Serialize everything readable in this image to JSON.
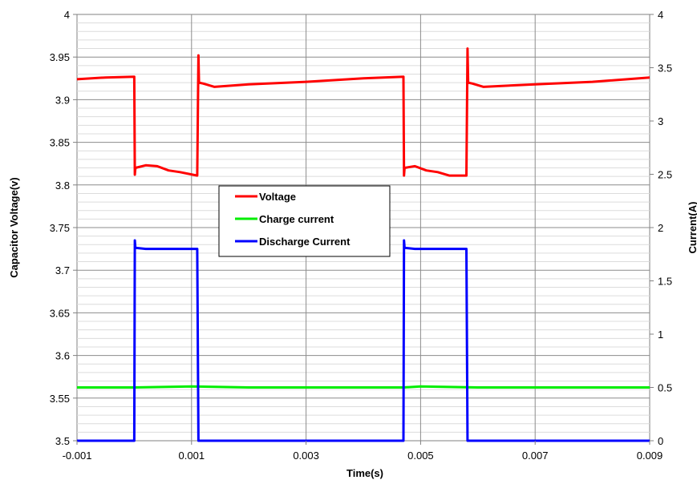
{
  "chart_data": {
    "type": "line",
    "title": "",
    "xlabel": "Time(s)",
    "ylabel": "Capacitor Voltage(v)",
    "y2label": "Current(A)",
    "xlim": [
      -0.001,
      0.009
    ],
    "ylim": [
      3.5,
      4.0
    ],
    "y2lim": [
      0,
      4
    ],
    "x_ticks": [
      -0.001,
      0.001,
      0.003,
      0.005,
      0.007,
      0.009
    ],
    "x_tick_labels": [
      "-0.001",
      "0.001",
      "0.003",
      "0.005",
      "0.007",
      "0.009"
    ],
    "y_ticks": [
      3.5,
      3.55,
      3.6,
      3.65,
      3.7,
      3.75,
      3.8,
      3.85,
      3.9,
      3.95,
      4.0
    ],
    "y_tick_labels": [
      "3.5",
      "3.55",
      "3.6",
      "3.65",
      "3.7",
      "3.75",
      "3.8",
      "3.85",
      "3.9",
      "3.95",
      "4"
    ],
    "y2_ticks": [
      0,
      0.5,
      1,
      1.5,
      2,
      2.5,
      3,
      3.5,
      4
    ],
    "y2_tick_labels": [
      "0",
      "0.5",
      "1",
      "1.5",
      "2",
      "2.5",
      "3",
      "3.5",
      "4"
    ],
    "grid": true,
    "legend_position": "center",
    "series": [
      {
        "name": "Voltage",
        "axis": "left",
        "color": "#ff0000",
        "x": [
          -0.001,
          -0.0005,
          0.0,
          1e-05,
          2e-05,
          0.0002,
          0.0004,
          0.0006,
          0.0008,
          0.0011,
          0.00112,
          0.00113,
          0.0012,
          0.0014,
          0.002,
          0.003,
          0.004,
          0.0047,
          0.00471,
          0.00472,
          0.0049,
          0.0051,
          0.0053,
          0.0055,
          0.0058,
          0.00582,
          0.00583,
          0.0059,
          0.0061,
          0.007,
          0.008,
          0.009
        ],
        "y": [
          3.924,
          3.926,
          3.927,
          3.812,
          3.82,
          3.823,
          3.822,
          3.817,
          3.815,
          3.811,
          3.952,
          3.92,
          3.919,
          3.915,
          3.918,
          3.921,
          3.925,
          3.927,
          3.811,
          3.82,
          3.822,
          3.817,
          3.815,
          3.811,
          3.811,
          3.96,
          3.92,
          3.919,
          3.915,
          3.918,
          3.921,
          3.926
        ]
      },
      {
        "name": "Charge current",
        "axis": "right",
        "color": "#00ee00",
        "x": [
          -0.001,
          0.0,
          0.001,
          0.002,
          0.003,
          0.004,
          0.0047,
          0.005,
          0.006,
          0.007,
          0.008,
          0.009
        ],
        "y": [
          0.5,
          0.5,
          0.51,
          0.5,
          0.5,
          0.5,
          0.5,
          0.51,
          0.5,
          0.5,
          0.5,
          0.5
        ]
      },
      {
        "name": "Discharge Current",
        "axis": "right",
        "color": "#0000ff",
        "x": [
          -0.001,
          0.0,
          1e-05,
          2e-05,
          0.0002,
          0.0011,
          0.00112,
          0.003,
          0.0047,
          0.00471,
          0.00472,
          0.0049,
          0.0058,
          0.00582,
          0.007,
          0.009
        ],
        "y": [
          0,
          0,
          1.88,
          1.81,
          1.8,
          1.8,
          0,
          0,
          0,
          1.88,
          1.81,
          1.8,
          1.8,
          0,
          0,
          0
        ]
      }
    ]
  }
}
